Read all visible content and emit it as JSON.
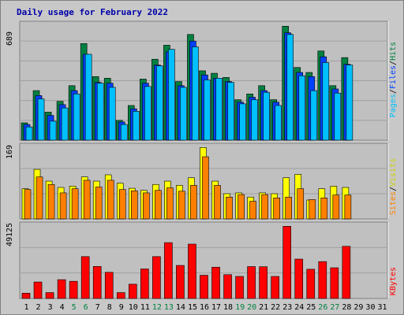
{
  "title": "Daily usage for February 2022",
  "colors": {
    "hits": "#008040",
    "files": "#0040ff",
    "pages": "#00c0ff",
    "visits": "#ffff00",
    "sites": "#ff8000",
    "kbytes": "#ff0000",
    "panel_bg": "#c0c0c0",
    "page_bg": "#c8c8c8",
    "weekend_tick": "#008040",
    "weekday_tick": "#000000",
    "title": "#0000a8"
  },
  "chart_data": [
    {
      "type": "bar",
      "panel": "pages-files-hits",
      "y_max_label": "689",
      "ylim": [
        0,
        720
      ],
      "legend": {
        "pages": "Pages",
        "files": "Files",
        "hits": "Hits",
        "separator": "/"
      },
      "categories": [
        "1",
        "2",
        "3",
        "4",
        "5",
        "6",
        "7",
        "8",
        "9",
        "10",
        "11",
        "12",
        "13",
        "14",
        "15",
        "16",
        "17",
        "18",
        "19",
        "20",
        "21",
        "22",
        "23",
        "24",
        "25",
        "26",
        "27",
        "28",
        "29",
        "30",
        "31"
      ],
      "series": [
        {
          "name": "Hits",
          "values": [
            105,
            300,
            170,
            235,
            330,
            585,
            385,
            375,
            120,
            210,
            370,
            490,
            575,
            355,
            640,
            420,
            405,
            380,
            245,
            280,
            330,
            245,
            690,
            440,
            410,
            540,
            330,
            500,
            null,
            null,
            null
          ]
        },
        {
          "name": "Files",
          "values": [
            95,
            270,
            150,
            215,
            300,
            520,
            350,
            345,
            110,
            190,
            345,
            455,
            535,
            330,
            600,
            395,
            375,
            355,
            230,
            260,
            300,
            230,
            650,
            410,
            385,
            505,
            310,
            460,
            null,
            null,
            null
          ]
        },
        {
          "name": "Pages",
          "values": [
            80,
            250,
            115,
            195,
            280,
            520,
            345,
            320,
            95,
            175,
            325,
            450,
            550,
            320,
            565,
            365,
            375,
            350,
            220,
            245,
            290,
            210,
            640,
            390,
            300,
            470,
            285,
            455,
            null,
            null,
            null
          ]
        }
      ]
    },
    {
      "type": "bar",
      "panel": "visits-sites",
      "y_max_label": "169",
      "ylim": [
        0,
        180
      ],
      "legend": {
        "sites": "Sites",
        "visits": "Visits",
        "separator": "/"
      },
      "categories": [
        "1",
        "2",
        "3",
        "4",
        "5",
        "6",
        "7",
        "8",
        "9",
        "10",
        "11",
        "12",
        "13",
        "14",
        "15",
        "16",
        "17",
        "18",
        "19",
        "20",
        "21",
        "22",
        "23",
        "24",
        "25",
        "26",
        "27",
        "28",
        "29",
        "30",
        "31"
      ],
      "series": [
        {
          "name": "Visits",
          "values": [
            72,
            118,
            90,
            75,
            78,
            100,
            90,
            105,
            85,
            73,
            68,
            82,
            90,
            80,
            98,
            170,
            90,
            60,
            62,
            52,
            62,
            60,
            98,
            106,
            45,
            72,
            78,
            75,
            null,
            null,
            null
          ]
        },
        {
          "name": "Sites",
          "values": [
            70,
            100,
            82,
            62,
            72,
            92,
            76,
            92,
            70,
            67,
            62,
            68,
            74,
            66,
            80,
            148,
            80,
            52,
            58,
            42,
            58,
            50,
            52,
            72,
            46,
            50,
            57,
            57,
            null,
            null,
            null
          ]
        }
      ]
    },
    {
      "type": "bar",
      "panel": "kbytes",
      "y_max_label": "49125",
      "ylim": [
        0,
        52000
      ],
      "legend": {
        "kbytes": "KBytes"
      },
      "categories": [
        "1",
        "2",
        "3",
        "4",
        "5",
        "6",
        "7",
        "8",
        "9",
        "10",
        "11",
        "12",
        "13",
        "14",
        "15",
        "16",
        "17",
        "18",
        "19",
        "20",
        "21",
        "22",
        "23",
        "24",
        "25",
        "26",
        "27",
        "28",
        "29",
        "30",
        "31"
      ],
      "series": [
        {
          "name": "KBytes",
          "values": [
            3600,
            11200,
            4000,
            12800,
            11700,
            28500,
            21800,
            17800,
            4000,
            9700,
            20100,
            28500,
            38000,
            22500,
            37000,
            15800,
            21300,
            16200,
            15000,
            21700,
            21600,
            15000,
            49125,
            26800,
            19900,
            25100,
            20900,
            35500,
            null,
            null,
            null
          ]
        }
      ]
    }
  ],
  "x_ticks": [
    "1",
    "2",
    "3",
    "4",
    "5",
    "6",
    "7",
    "8",
    "9",
    "10",
    "11",
    "12",
    "13",
    "14",
    "15",
    "16",
    "17",
    "18",
    "19",
    "20",
    "21",
    "22",
    "23",
    "24",
    "25",
    "26",
    "27",
    "28",
    "29",
    "30",
    "31"
  ],
  "weekend_days": [
    5,
    6,
    12,
    13,
    19,
    20,
    26,
    27
  ]
}
